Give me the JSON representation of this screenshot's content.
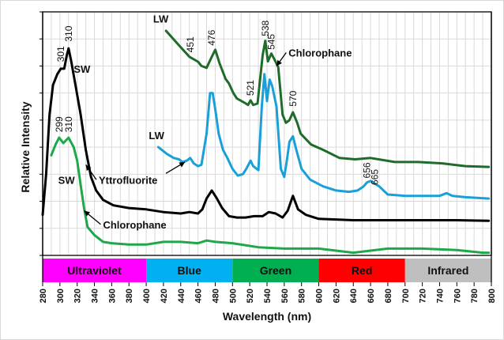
{
  "chart_data": {
    "type": "line",
    "title": "",
    "xlabel": "Wavelength (nm)",
    "ylabel": "Relative Intensity",
    "xlim": [
      280,
      800
    ],
    "ylim": [
      0,
      9
    ],
    "grid": true,
    "x_ticks": [
      280,
      300,
      320,
      340,
      360,
      380,
      400,
      420,
      440,
      460,
      480,
      500,
      520,
      540,
      560,
      580,
      600,
      620,
      640,
      660,
      680,
      700,
      720,
      740,
      760,
      780,
      800
    ],
    "x_tick_labels": [
      "280",
      "300",
      "320",
      "340",
      "360",
      "380",
      "400",
      "420",
      "440",
      "460",
      "480",
      "500",
      "520",
      "540",
      "560",
      "580",
      "600",
      "620",
      "640",
      "660",
      "680",
      "700",
      "720",
      "740",
      "760",
      "780",
      "800"
    ],
    "y_ticks": [
      0,
      1,
      2,
      3,
      4,
      5,
      6,
      7,
      8,
      9
    ],
    "bands": [
      {
        "label": "Ultraviolet",
        "start": 280,
        "end": 400,
        "color": "#ff00ff"
      },
      {
        "label": "Blue",
        "start": 400,
        "end": 500,
        "color": "#00b0f0"
      },
      {
        "label": "Green",
        "start": 500,
        "end": 600,
        "color": "#00b050"
      },
      {
        "label": "Red",
        "start": 600,
        "end": 700,
        "color": "#ff0000"
      },
      {
        "label": "Infrared",
        "start": 700,
        "end": 800,
        "color": "#bfbfbf"
      }
    ],
    "series": [
      {
        "name": "Chlorophane LW",
        "color": "#1e6b2a",
        "x": [
          423,
          437,
          450,
          460,
          464,
          470,
          476,
          480,
          485,
          492,
          496,
          501,
          505,
          514,
          518,
          521,
          524,
          529,
          535,
          538,
          541,
          545,
          549,
          553,
          558,
          562,
          566,
          570,
          575,
          579,
          591,
          605,
          624,
          642,
          660,
          688,
          715,
          743,
          770,
          797
        ],
        "y": [
          8.3,
          7.8,
          7.34,
          7.16,
          7.0,
          6.93,
          7.34,
          7.6,
          7.1,
          6.52,
          6.35,
          6.0,
          5.8,
          5.64,
          5.56,
          5.73,
          5.56,
          5.61,
          7.4,
          7.93,
          7.17,
          7.46,
          7.22,
          6.96,
          5.2,
          4.9,
          5.0,
          5.29,
          4.9,
          4.5,
          4.1,
          3.9,
          3.6,
          3.55,
          3.6,
          3.45,
          3.45,
          3.4,
          3.3,
          3.27
        ]
      },
      {
        "name": "Yttrofluorite LW",
        "color": "#1aa0d8",
        "x": [
          414,
          424,
          432,
          438,
          442,
          447,
          451,
          455,
          460,
          464,
          470,
          474,
          477,
          480,
          484,
          489,
          494,
          500,
          506,
          512,
          516,
          521,
          524,
          530,
          534,
          537,
          540,
          543,
          546,
          551,
          556,
          560,
          563,
          566,
          570,
          574,
          580,
          590,
          605,
          620,
          635,
          645,
          652,
          656,
          660,
          665,
          670,
          680,
          700,
          720,
          740,
          748,
          755,
          770,
          797
        ],
        "y": [
          4.0,
          3.75,
          3.6,
          3.55,
          3.45,
          3.5,
          3.6,
          3.4,
          3.3,
          3.35,
          4.5,
          6.0,
          6.0,
          5.4,
          4.5,
          3.9,
          3.6,
          3.2,
          2.95,
          3.0,
          3.2,
          3.5,
          3.3,
          3.15,
          5.5,
          6.7,
          5.7,
          6.5,
          6.25,
          5.5,
          3.2,
          2.9,
          3.5,
          4.2,
          4.4,
          3.9,
          3.2,
          2.8,
          2.55,
          2.4,
          2.35,
          2.4,
          2.55,
          2.7,
          2.75,
          2.65,
          2.55,
          2.25,
          2.2,
          2.2,
          2.2,
          2.3,
          2.2,
          2.15,
          2.1
        ]
      },
      {
        "name": "Yttrofluorite SW",
        "color": "#000000",
        "x": [
          280,
          284,
          288,
          292,
          297,
          301,
          305,
          308,
          310,
          313,
          318,
          324,
          330,
          336,
          342,
          350,
          362,
          380,
          400,
          420,
          440,
          450,
          460,
          465,
          470,
          476,
          482,
          488,
          496,
          505,
          515,
          525,
          535,
          542,
          550,
          558,
          564,
          570,
          576,
          585,
          600,
          640,
          680,
          720,
          760,
          797
        ],
        "y": [
          1.5,
          3.0,
          5.2,
          6.3,
          6.7,
          6.9,
          6.9,
          7.4,
          7.65,
          7.2,
          6.3,
          5.2,
          3.9,
          2.9,
          2.4,
          2.05,
          1.85,
          1.75,
          1.7,
          1.6,
          1.55,
          1.6,
          1.55,
          1.7,
          2.1,
          2.4,
          2.1,
          1.75,
          1.45,
          1.4,
          1.4,
          1.45,
          1.45,
          1.6,
          1.55,
          1.4,
          1.65,
          2.2,
          1.7,
          1.5,
          1.35,
          1.3,
          1.3,
          1.3,
          1.3,
          1.28
        ]
      },
      {
        "name": "Chlorophane SW",
        "color": "#1ea84a",
        "x": [
          290,
          295,
          299,
          304,
          310,
          316,
          320,
          324,
          328,
          332,
          340,
          350,
          360,
          380,
          400,
          420,
          440,
          460,
          470,
          480,
          500,
          530,
          560,
          600,
          640,
          680,
          720,
          760,
          790,
          797
        ],
        "y": [
          3.7,
          4.1,
          4.35,
          4.15,
          4.35,
          4.0,
          3.5,
          2.6,
          1.75,
          1.05,
          0.75,
          0.5,
          0.45,
          0.4,
          0.4,
          0.5,
          0.5,
          0.45,
          0.55,
          0.5,
          0.45,
          0.3,
          0.25,
          0.25,
          0.1,
          0.25,
          0.25,
          0.2,
          0.1,
          0.1
        ]
      }
    ],
    "annotations": [
      {
        "text": "LW",
        "x": 408,
        "y": 8.6
      },
      {
        "text": "451",
        "x": 451,
        "y": 7.5,
        "rotated": true
      },
      {
        "text": "476",
        "x": 476,
        "y": 7.75,
        "rotated": true
      },
      {
        "text": "521",
        "x": 521,
        "y": 5.9,
        "rotated": true
      },
      {
        "text": "538",
        "x": 538,
        "y": 8.1,
        "rotated": true
      },
      {
        "text": "545",
        "x": 545,
        "y": 7.6,
        "rotated": true
      },
      {
        "text": "570",
        "x": 570,
        "y": 5.5,
        "rotated": true
      },
      {
        "text": "Chlorophane",
        "x": 565,
        "y": 7.35,
        "arrow_to": [
          551,
          7.0
        ]
      },
      {
        "text": "LW",
        "x": 403,
        "y": 4.3
      },
      {
        "text": "656",
        "x": 656,
        "y": 2.85,
        "rotated": true
      },
      {
        "text": "665",
        "x": 665,
        "y": 2.6,
        "rotated": true
      },
      {
        "text": "Yttrofluorite",
        "x": 345,
        "y": 2.65,
        "arrow_to": [
          330,
          3.35
        ],
        "arrow2_to": [
          445,
          3.45
        ]
      },
      {
        "text": "301",
        "x": 301,
        "y": 7.15,
        "rotated": true
      },
      {
        "text": "310",
        "x": 310,
        "y": 7.9,
        "rotated": true
      },
      {
        "text": "SW",
        "x": 316,
        "y": 6.75
      },
      {
        "text": "299",
        "x": 299,
        "y": 4.55,
        "rotated": true
      },
      {
        "text": "310",
        "x": 310,
        "y": 4.55,
        "rotated": true
      },
      {
        "text": "SW",
        "x": 298,
        "y": 2.65
      },
      {
        "text": "Chlorophane",
        "x": 350,
        "y": 1.0,
        "arrow_to": [
          328,
          1.65
        ]
      }
    ]
  }
}
